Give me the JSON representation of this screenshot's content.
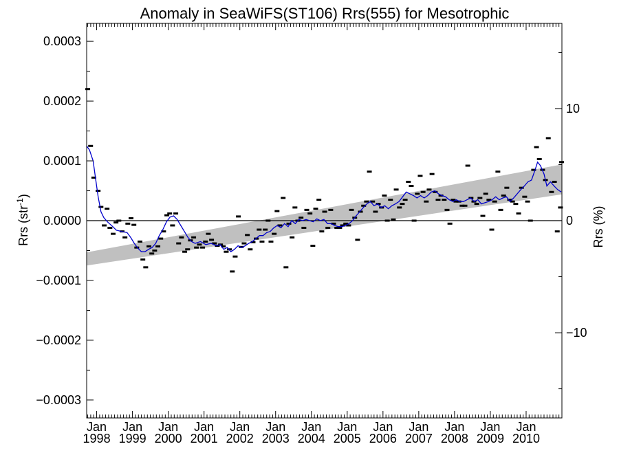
{
  "chart_data": {
    "type": "scatter",
    "title": "Anomaly in SeaWiFS(ST106) Rrs(555) for Mesotrophic",
    "ylabel_main": "Rrs (str",
    "ylabel_sup": "-1",
    "ylabel_close": ")",
    "y2label": "Rrs (%)",
    "xlim": [
      1997.72,
      2011.0
    ],
    "ylim": [
      -0.00033,
      0.00033
    ],
    "y2lim": [
      -17.6,
      17.6
    ],
    "x_ticks": [
      {
        "x": 1998.0,
        "label": "Jan",
        "year": "1998"
      },
      {
        "x": 1999.0,
        "label": "Jan",
        "year": "1999"
      },
      {
        "x": 2000.0,
        "label": "Jan",
        "year": "2000"
      },
      {
        "x": 2001.0,
        "label": "Jan",
        "year": "2001"
      },
      {
        "x": 2002.0,
        "label": "Jan",
        "year": "2002"
      },
      {
        "x": 2003.0,
        "label": "Jan",
        "year": "2003"
      },
      {
        "x": 2004.0,
        "label": "Jan",
        "year": "2004"
      },
      {
        "x": 2005.0,
        "label": "Jan",
        "year": "2005"
      },
      {
        "x": 2006.0,
        "label": "Jan",
        "year": "2006"
      },
      {
        "x": 2007.0,
        "label": "Jan",
        "year": "2007"
      },
      {
        "x": 2008.0,
        "label": "Jan",
        "year": "2008"
      },
      {
        "x": 2009.0,
        "label": "Jan",
        "year": "2009"
      },
      {
        "x": 2010.0,
        "label": "Jan",
        "year": "2010"
      }
    ],
    "y_ticks": [
      {
        "v": 0.0003,
        "label": "0.0003"
      },
      {
        "v": 0.0002,
        "label": "0.0002"
      },
      {
        "v": 0.0001,
        "label": "0.0001"
      },
      {
        "v": 0.0,
        "label": "0.0000"
      },
      {
        "v": -0.0001,
        "label": "−0.0001"
      },
      {
        "v": -0.0002,
        "label": "−0.0002"
      },
      {
        "v": -0.0003,
        "label": "−0.0003"
      }
    ],
    "y2_ticks": [
      {
        "v": 10,
        "label": "10"
      },
      {
        "v": 0,
        "label": "0"
      },
      {
        "v": -10,
        "label": "−10"
      }
    ],
    "trend_band": {
      "x_start": 1997.72,
      "lower_start": -7.5e-05,
      "upper_start": -5.3e-05,
      "x_end": 2011.0,
      "lower_end": 4.4e-05,
      "upper_end": 9.4e-05
    },
    "points": [
      [
        1997.75,
        0.00022
      ],
      [
        1997.83,
        0.000125
      ],
      [
        1997.92,
        7.2e-05
      ],
      [
        1998.04,
        5e-05
      ],
      [
        1998.12,
        2.3e-05
      ],
      [
        1998.21,
        -8e-06
      ],
      [
        1998.29,
        2e-05
      ],
      [
        1998.37,
        -1.2e-05
      ],
      [
        1998.46,
        -2.2e-05
      ],
      [
        1998.54,
        -3e-06
      ],
      [
        1998.62,
        0.0
      ],
      [
        1998.71,
        -1.8e-05
      ],
      [
        1998.79,
        -2.8e-05
      ],
      [
        1998.87,
        -5e-06
      ],
      [
        1998.96,
        4e-06
      ],
      [
        1999.04,
        -7e-06
      ],
      [
        1999.12,
        -4.5e-05
      ],
      [
        1999.21,
        -3.5e-05
      ],
      [
        1999.29,
        -6.5e-05
      ],
      [
        1999.37,
        -7.8e-05
      ],
      [
        1999.46,
        -4.3e-05
      ],
      [
        1999.54,
        -5.5e-05
      ],
      [
        1999.62,
        -5e-05
      ],
      [
        1999.71,
        -4.3e-05
      ],
      [
        1999.79,
        -3e-05
      ],
      [
        1999.87,
        -1.8e-05
      ],
      [
        1999.96,
        9e-06
      ],
      [
        2000.04,
        1.2e-05
      ],
      [
        2000.12,
        -8e-06
      ],
      [
        2000.21,
        1.2e-05
      ],
      [
        2000.29,
        -3.8e-05
      ],
      [
        2000.37,
        -2.8e-05
      ],
      [
        2000.46,
        -5.2e-05
      ],
      [
        2000.54,
        -4.8e-05
      ],
      [
        2000.62,
        -3.3e-05
      ],
      [
        2000.71,
        -2.8e-05
      ],
      [
        2000.79,
        -4.5e-05
      ],
      [
        2000.87,
        -4e-05
      ],
      [
        2000.96,
        -4.5e-05
      ],
      [
        2001.04,
        -3.5e-05
      ],
      [
        2001.12,
        -2.2e-05
      ],
      [
        2001.21,
        -3.2e-05
      ],
      [
        2001.29,
        -3.8e-05
      ],
      [
        2001.37,
        -4.2e-05
      ],
      [
        2001.46,
        -4e-05
      ],
      [
        2001.54,
        -4.3e-05
      ],
      [
        2001.62,
        -5.2e-05
      ],
      [
        2001.71,
        -4.8e-05
      ],
      [
        2001.79,
        -8.5e-05
      ],
      [
        2001.87,
        -6e-05
      ],
      [
        2001.96,
        7e-06
      ],
      [
        2002.04,
        -4.4e-05
      ],
      [
        2002.12,
        -3.8e-05
      ],
      [
        2002.21,
        -2.4e-05
      ],
      [
        2002.29,
        -4.8e-05
      ],
      [
        2002.37,
        -3.6e-05
      ],
      [
        2002.46,
        -3e-05
      ],
      [
        2002.54,
        -1.5e-05
      ],
      [
        2002.62,
        -3.5e-05
      ],
      [
        2002.71,
        -1.5e-05
      ],
      [
        2002.79,
        0.0
      ],
      [
        2002.87,
        -3.5e-05
      ],
      [
        2002.96,
        -2.2e-05
      ],
      [
        2003.04,
        1.6e-05
      ],
      [
        2003.12,
        -8e-06
      ],
      [
        2003.21,
        3.8e-05
      ],
      [
        2003.29,
        -7.8e-05
      ],
      [
        2003.37,
        -5e-06
      ],
      [
        2003.46,
        -2.8e-05
      ],
      [
        2003.54,
        2.2e-05
      ],
      [
        2003.62,
        0.0
      ],
      [
        2003.71,
        5e-06
      ],
      [
        2003.79,
        -1.2e-05
      ],
      [
        2003.87,
        1.8e-05
      ],
      [
        2003.96,
        1.2e-05
      ],
      [
        2004.04,
        -4.2e-05
      ],
      [
        2004.12,
        2e-05
      ],
      [
        2004.21,
        3.5e-05
      ],
      [
        2004.29,
        -1.8e-05
      ],
      [
        2004.37,
        1.5e-05
      ],
      [
        2004.46,
        -1.2e-05
      ],
      [
        2004.54,
        1.8e-05
      ],
      [
        2004.62,
        -5e-06
      ],
      [
        2004.71,
        -1.2e-05
      ],
      [
        2004.79,
        -1.2e-05
      ],
      [
        2004.87,
        -8e-06
      ],
      [
        2004.96,
        -5e-06
      ],
      [
        2005.04,
        -8e-06
      ],
      [
        2005.12,
        1.8e-05
      ],
      [
        2005.21,
        5e-06
      ],
      [
        2005.29,
        -3.2e-05
      ],
      [
        2005.37,
        1.5e-05
      ],
      [
        2005.46,
        2.5e-05
      ],
      [
        2005.54,
        3.2e-05
      ],
      [
        2005.62,
        8.2e-05
      ],
      [
        2005.71,
        3.2e-05
      ],
      [
        2005.79,
        1.5e-05
      ],
      [
        2005.87,
        2.8e-05
      ],
      [
        2005.96,
        2.2e-05
      ],
      [
        2006.04,
        4.2e-05
      ],
      [
        2006.12,
        0.0
      ],
      [
        2006.21,
        3.5e-05
      ],
      [
        2006.29,
        2e-06
      ],
      [
        2006.37,
        5.2e-05
      ],
      [
        2006.46,
        2.2e-05
      ],
      [
        2006.54,
        2.8e-05
      ],
      [
        2006.62,
        3.5e-05
      ],
      [
        2006.71,
        6.5e-05
      ],
      [
        2006.79,
        5.8e-05
      ],
      [
        2006.87,
        0.0
      ],
      [
        2006.96,
        4.5e-05
      ],
      [
        2007.04,
        7.5e-05
      ],
      [
        2007.12,
        4.8e-05
      ],
      [
        2007.21,
        3.2e-05
      ],
      [
        2007.29,
        5.2e-05
      ],
      [
        2007.37,
        7.8e-05
      ],
      [
        2007.46,
        4.8e-05
      ],
      [
        2007.54,
        3.5e-05
      ],
      [
        2007.62,
        4.2e-05
      ],
      [
        2007.71,
        3.5e-05
      ],
      [
        2007.79,
        1.8e-05
      ],
      [
        2007.87,
        -5e-06
      ],
      [
        2007.96,
        3.5e-05
      ],
      [
        2008.04,
        3.2e-05
      ],
      [
        2008.12,
        3.2e-05
      ],
      [
        2008.21,
        2.5e-05
      ],
      [
        2008.29,
        2.5e-05
      ],
      [
        2008.37,
        9.2e-05
      ],
      [
        2008.46,
        3.8e-05
      ],
      [
        2008.54,
        3.2e-05
      ],
      [
        2008.62,
        2.8e-05
      ],
      [
        2008.71,
        3.8e-05
      ],
      [
        2008.79,
        8e-06
      ],
      [
        2008.87,
        4.5e-05
      ],
      [
        2008.96,
        3.5e-05
      ],
      [
        2009.04,
        -1.5e-05
      ],
      [
        2009.12,
        3.2e-05
      ],
      [
        2009.21,
        8.2e-05
      ],
      [
        2009.29,
        1.8e-05
      ],
      [
        2009.37,
        4.2e-05
      ],
      [
        2009.46,
        5.5e-05
      ],
      [
        2009.54,
        3.5e-05
      ],
      [
        2009.62,
        3.2e-05
      ],
      [
        2009.71,
        2.8e-05
      ],
      [
        2009.79,
        1.2e-05
      ],
      [
        2009.87,
        5.5e-05
      ],
      [
        2009.96,
        4e-05
      ],
      [
        2010.04,
        3.2e-05
      ],
      [
        2010.12,
        0.0
      ],
      [
        2010.21,
        8.5e-05
      ],
      [
        2010.29,
        0.000123
      ],
      [
        2010.37,
        0.000103
      ],
      [
        2010.46,
        8.5e-05
      ],
      [
        2010.54,
        6.8e-05
      ],
      [
        2010.62,
        0.000138
      ],
      [
        2010.71,
        4.8e-05
      ],
      [
        2010.79,
        6.5e-05
      ],
      [
        2010.87,
        -1.8e-05
      ],
      [
        2010.96,
        2.2e-05
      ],
      [
        2010.99,
        9.8e-05
      ]
    ],
    "smooth_line": [
      [
        1997.72,
        0.000125
      ],
      [
        1997.8,
        0.000118
      ],
      [
        1997.9,
        0.0001
      ],
      [
        1997.97,
        7e-05
      ],
      [
        1998.04,
        4e-05
      ],
      [
        1998.12,
        1.5e-05
      ],
      [
        1998.2,
        5e-06
      ],
      [
        1998.3,
        -2e-06
      ],
      [
        1998.45,
        -1e-05
      ],
      [
        1998.55,
        -1.6e-05
      ],
      [
        1998.7,
        -1.8e-05
      ],
      [
        1998.85,
        -2e-05
      ],
      [
        1998.95,
        -2.8e-05
      ],
      [
        1999.05,
        -3.8e-05
      ],
      [
        1999.15,
        -4.6e-05
      ],
      [
        1999.25,
        -5.2e-05
      ],
      [
        1999.35,
        -5.2e-05
      ],
      [
        1999.45,
        -4.8e-05
      ],
      [
        1999.55,
        -4.5e-05
      ],
      [
        1999.65,
        -3.8e-05
      ],
      [
        1999.75,
        -2.5e-05
      ],
      [
        1999.85,
        -1.5e-05
      ],
      [
        1999.95,
        -2e-06
      ],
      [
        2000.05,
        6e-06
      ],
      [
        2000.15,
        8e-06
      ],
      [
        2000.25,
        2e-06
      ],
      [
        2000.35,
        -8e-06
      ],
      [
        2000.45,
        -1.8e-05
      ],
      [
        2000.55,
        -2.8e-05
      ],
      [
        2000.65,
        -3.5e-05
      ],
      [
        2000.75,
        -3.8e-05
      ],
      [
        2000.9,
        -3.5e-05
      ],
      [
        2001.05,
        -4e-05
      ],
      [
        2001.2,
        -3.8e-05
      ],
      [
        2001.35,
        -4.2e-05
      ],
      [
        2001.45,
        -4e-05
      ],
      [
        2001.55,
        -4.8e-05
      ],
      [
        2001.65,
        -4.5e-05
      ],
      [
        2001.75,
        -5.2e-05
      ],
      [
        2001.85,
        -4.8e-05
      ],
      [
        2001.95,
        -4.2e-05
      ],
      [
        2002.05,
        -4.5e-05
      ],
      [
        2002.15,
        -4.2e-05
      ],
      [
        2002.25,
        -3.8e-05
      ],
      [
        2002.35,
        -3.5e-05
      ],
      [
        2002.45,
        -3e-05
      ],
      [
        2002.55,
        -2.5e-05
      ],
      [
        2002.65,
        -2.5e-05
      ],
      [
        2002.75,
        -2e-05
      ],
      [
        2002.85,
        -1.8e-05
      ],
      [
        2002.95,
        -1.2e-05
      ],
      [
        2003.05,
        -8e-06
      ],
      [
        2003.15,
        -1.2e-05
      ],
      [
        2003.25,
        -5e-06
      ],
      [
        2003.35,
        -1e-05
      ],
      [
        2003.45,
        0.0
      ],
      [
        2003.55,
        -5e-06
      ],
      [
        2003.65,
        2e-06
      ],
      [
        2003.75,
        0.0
      ],
      [
        2003.85,
        2e-06
      ],
      [
        2003.95,
        0.0
      ],
      [
        2004.05,
        -2e-06
      ],
      [
        2004.15,
        3e-06
      ],
      [
        2004.25,
        0.0
      ],
      [
        2004.35,
        2e-06
      ],
      [
        2004.45,
        -5e-06
      ],
      [
        2004.55,
        -5e-06
      ],
      [
        2004.65,
        -8e-06
      ],
      [
        2004.75,
        -1e-05
      ],
      [
        2004.85,
        -1e-05
      ],
      [
        2004.95,
        -8e-06
      ],
      [
        2005.05,
        -5e-06
      ],
      [
        2005.15,
        0.0
      ],
      [
        2005.25,
        8e-06
      ],
      [
        2005.35,
        1.5e-05
      ],
      [
        2005.45,
        2.2e-05
      ],
      [
        2005.55,
        2.8e-05
      ],
      [
        2005.65,
        3.2e-05
      ],
      [
        2005.75,
        2.5e-05
      ],
      [
        2005.85,
        2.8e-05
      ],
      [
        2005.95,
        2.2e-05
      ],
      [
        2006.05,
        2.5e-05
      ],
      [
        2006.15,
        2e-05
      ],
      [
        2006.25,
        2.5e-05
      ],
      [
        2006.35,
        2.8e-05
      ],
      [
        2006.45,
        3.2e-05
      ],
      [
        2006.55,
        4e-05
      ],
      [
        2006.65,
        4.8e-05
      ],
      [
        2006.75,
        4.5e-05
      ],
      [
        2006.85,
        4.2e-05
      ],
      [
        2006.95,
        3.8e-05
      ],
      [
        2007.05,
        4.2e-05
      ],
      [
        2007.15,
        3.8e-05
      ],
      [
        2007.25,
        4.2e-05
      ],
      [
        2007.35,
        4.8e-05
      ],
      [
        2007.45,
        5e-05
      ],
      [
        2007.55,
        4.5e-05
      ],
      [
        2007.65,
        4.2e-05
      ],
      [
        2007.75,
        4e-05
      ],
      [
        2007.85,
        3.5e-05
      ],
      [
        2007.95,
        3.2e-05
      ],
      [
        2008.05,
        3.5e-05
      ],
      [
        2008.15,
        3.2e-05
      ],
      [
        2008.25,
        3.2e-05
      ],
      [
        2008.35,
        3.5e-05
      ],
      [
        2008.45,
        3.8e-05
      ],
      [
        2008.55,
        3.2e-05
      ],
      [
        2008.65,
        3.5e-05
      ],
      [
        2008.75,
        2.8e-05
      ],
      [
        2008.85,
        3e-05
      ],
      [
        2008.95,
        3.2e-05
      ],
      [
        2009.05,
        3.5e-05
      ],
      [
        2009.15,
        4e-05
      ],
      [
        2009.25,
        3.5e-05
      ],
      [
        2009.35,
        3.8e-05
      ],
      [
        2009.45,
        4e-05
      ],
      [
        2009.55,
        3.2e-05
      ],
      [
        2009.65,
        3.8e-05
      ],
      [
        2009.75,
        4.5e-05
      ],
      [
        2009.85,
        5.2e-05
      ],
      [
        2009.95,
        5.8e-05
      ],
      [
        2010.05,
        6.5e-05
      ],
      [
        2010.15,
        6.8e-05
      ],
      [
        2010.25,
        8.5e-05
      ],
      [
        2010.32,
        9.8e-05
      ],
      [
        2010.4,
        9.2e-05
      ],
      [
        2010.5,
        7.8e-05
      ],
      [
        2010.58,
        5.8e-05
      ],
      [
        2010.68,
        6.5e-05
      ],
      [
        2010.78,
        5.8e-05
      ],
      [
        2010.88,
        5.2e-05
      ],
      [
        2010.98,
        4.8e-05
      ]
    ],
    "colors": {
      "smooth_line": "#0000cc",
      "trend_band": "#c0c0c0",
      "points": "#000000"
    }
  }
}
